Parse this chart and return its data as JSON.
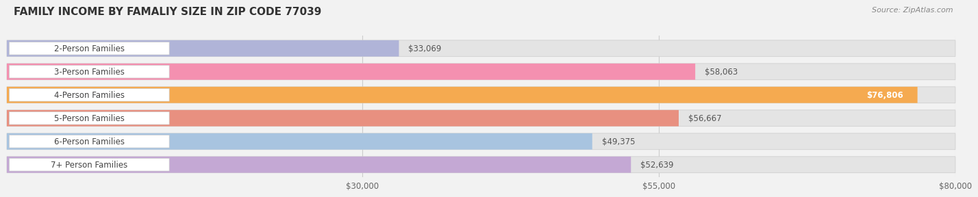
{
  "title": "FAMILY INCOME BY FAMALIY SIZE IN ZIP CODE 77039",
  "source": "Source: ZipAtlas.com",
  "categories": [
    "2-Person Families",
    "3-Person Families",
    "4-Person Families",
    "5-Person Families",
    "6-Person Families",
    "7+ Person Families"
  ],
  "values": [
    33069,
    58063,
    76806,
    56667,
    49375,
    52639
  ],
  "bar_colors": [
    "#b0b4d8",
    "#f490b0",
    "#f5aa50",
    "#e89080",
    "#a8c4e0",
    "#c4a8d4"
  ],
  "value_labels": [
    "$33,069",
    "$58,063",
    "$76,806",
    "$56,667",
    "$49,375",
    "$52,639"
  ],
  "value_inside": [
    false,
    false,
    true,
    false,
    false,
    false
  ],
  "xlim": [
    0,
    80000
  ],
  "xticks": [
    30000,
    55000,
    80000
  ],
  "xtick_labels": [
    "$30,000",
    "$55,000",
    "$80,000"
  ],
  "background_color": "#f2f2f2",
  "bar_bg_color": "#e4e4e4",
  "title_fontsize": 11,
  "label_fontsize": 8.5,
  "value_fontsize": 8.5,
  "source_fontsize": 8
}
